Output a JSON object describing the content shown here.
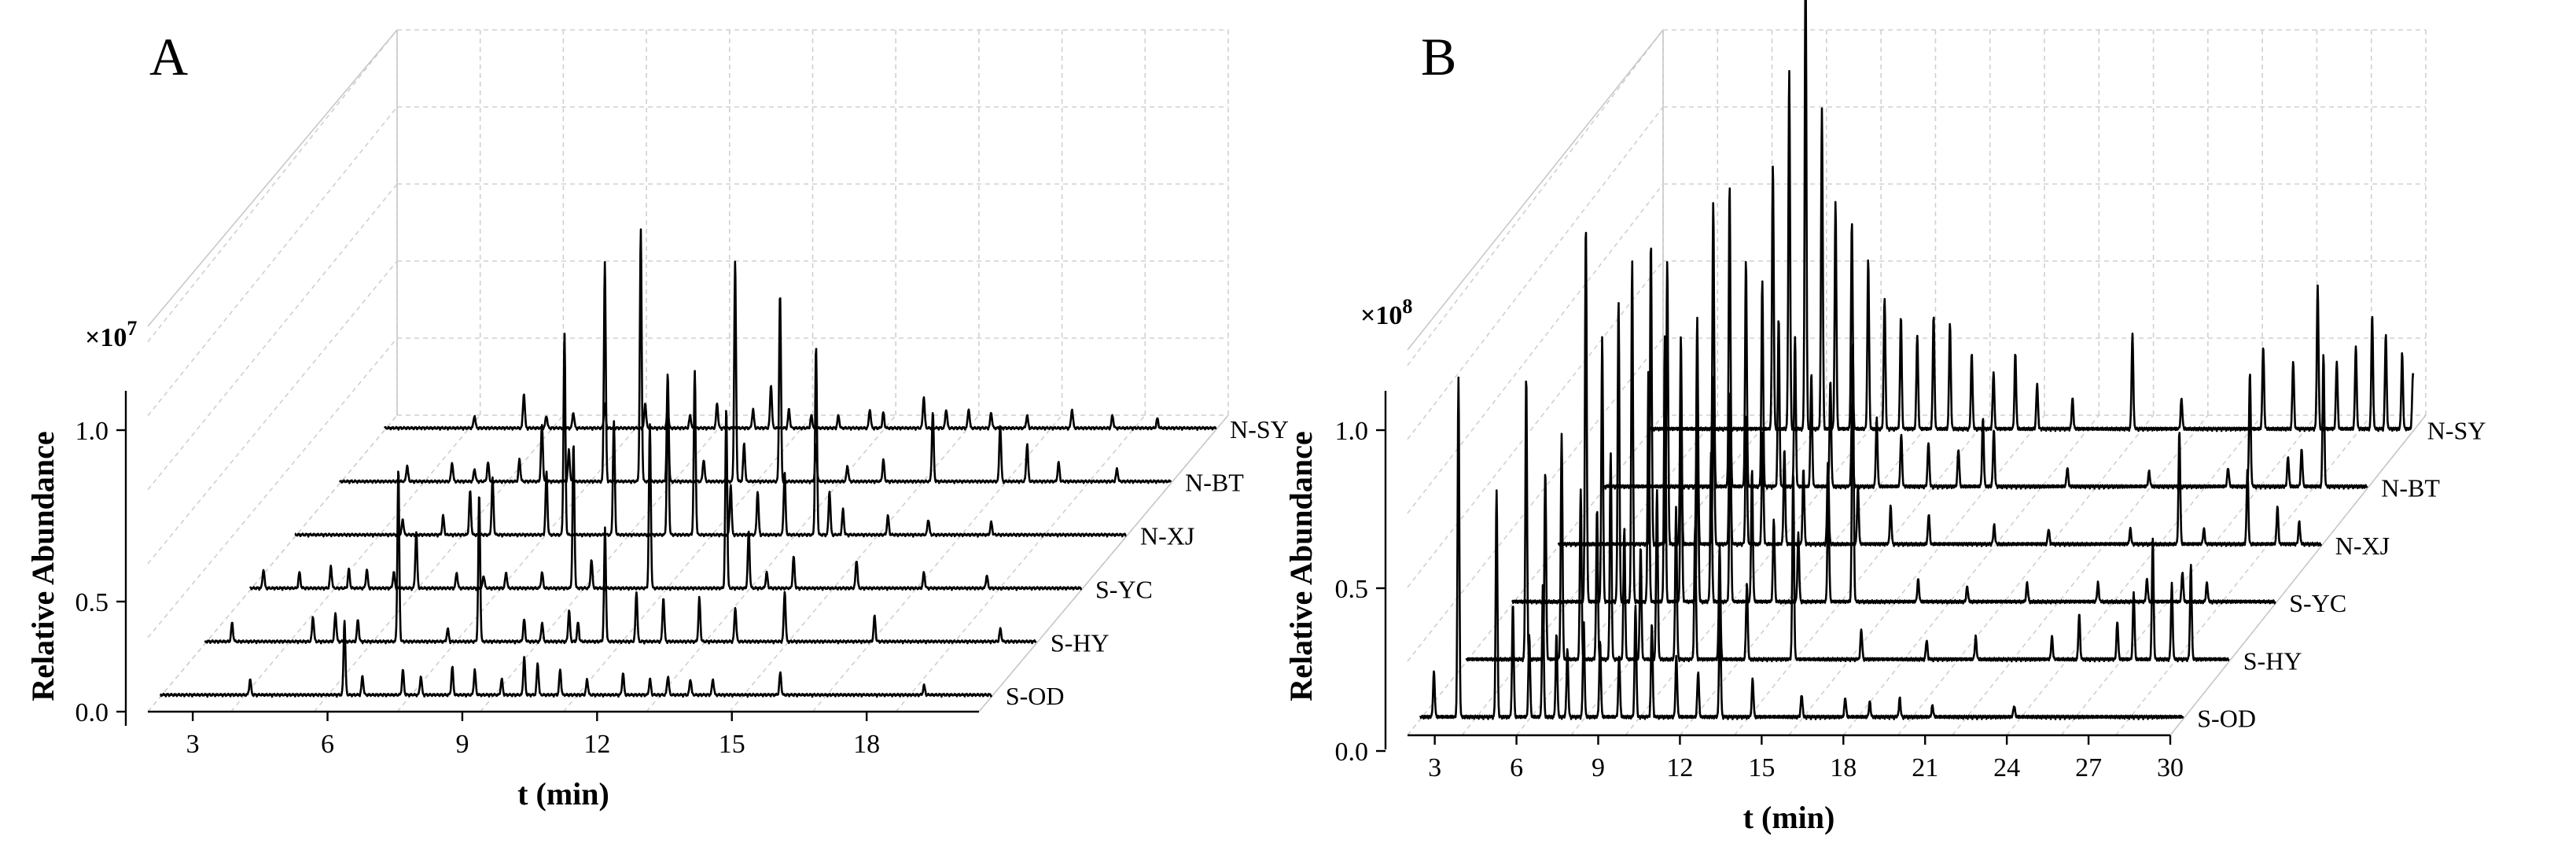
{
  "chart_data": [
    {
      "type": "line",
      "panel_label": "A",
      "xlabel": "t (min)",
      "ylabel": "Relative Abundance",
      "y_multiplier": "×10",
      "y_multiplier_exp": "7",
      "x_ticks": [
        "3",
        "6",
        "9",
        "12",
        "15",
        "18"
      ],
      "y_ticks": [
        "0.0",
        "0.5",
        "1.0"
      ],
      "xlim": [
        2,
        20.5
      ],
      "ylim": [
        0,
        1.0
      ],
      "series": [
        {
          "name": "S-OD",
          "peaks": [
            [
              4.0,
              0.05
            ],
            [
              6.1,
              0.24
            ],
            [
              6.5,
              0.06
            ],
            [
              7.4,
              0.08
            ],
            [
              7.8,
              0.06
            ],
            [
              8.5,
              0.09
            ],
            [
              9.0,
              0.08
            ],
            [
              9.6,
              0.05
            ],
            [
              10.1,
              0.12
            ],
            [
              10.4,
              0.1
            ],
            [
              10.9,
              0.08
            ],
            [
              11.5,
              0.05
            ],
            [
              12.3,
              0.07
            ],
            [
              12.9,
              0.05
            ],
            [
              13.3,
              0.06
            ],
            [
              13.8,
              0.05
            ],
            [
              14.3,
              0.05
            ],
            [
              15.8,
              0.07
            ],
            [
              19.0,
              0.03
            ]
          ]
        },
        {
          "name": "S-HY",
          "peaks": [
            [
              2.6,
              0.06
            ],
            [
              4.4,
              0.08
            ],
            [
              4.9,
              0.09
            ],
            [
              5.4,
              0.07
            ],
            [
              6.3,
              0.55
            ],
            [
              7.4,
              0.04
            ],
            [
              8.1,
              0.47
            ],
            [
              9.1,
              0.07
            ],
            [
              9.5,
              0.06
            ],
            [
              10.1,
              0.1
            ],
            [
              10.3,
              0.06
            ],
            [
              10.9,
              0.36
            ],
            [
              11.6,
              0.16
            ],
            [
              12.2,
              0.14
            ],
            [
              13.0,
              0.14
            ],
            [
              13.8,
              0.11
            ],
            [
              14.9,
              0.16
            ],
            [
              16.9,
              0.08
            ],
            [
              19.7,
              0.04
            ]
          ]
        },
        {
          "name": "S-YC",
          "peaks": [
            [
              2.3,
              0.06
            ],
            [
              3.1,
              0.05
            ],
            [
              3.8,
              0.07
            ],
            [
              4.2,
              0.06
            ],
            [
              4.6,
              0.06
            ],
            [
              5.2,
              0.05
            ],
            [
              5.7,
              0.18
            ],
            [
              6.6,
              0.05
            ],
            [
              7.2,
              0.04
            ],
            [
              7.7,
              0.05
            ],
            [
              8.5,
              0.05
            ],
            [
              9.2,
              0.46
            ],
            [
              9.6,
              0.09
            ],
            [
              10.9,
              0.52
            ],
            [
              12.6,
              0.57
            ],
            [
              13.1,
              0.18
            ],
            [
              13.5,
              0.05
            ],
            [
              14.1,
              0.1
            ],
            [
              15.5,
              0.09
            ],
            [
              17.0,
              0.05
            ],
            [
              18.4,
              0.04
            ]
          ]
        },
        {
          "name": "N-XJ",
          "peaks": [
            [
              4.4,
              0.05
            ],
            [
              5.3,
              0.06
            ],
            [
              5.9,
              0.14
            ],
            [
              6.4,
              0.18
            ],
            [
              7.6,
              0.2
            ],
            [
              8.0,
              0.64
            ],
            [
              9.1,
              0.36
            ],
            [
              10.3,
              0.47
            ],
            [
              10.9,
              0.52
            ],
            [
              11.7,
              0.16
            ],
            [
              12.3,
              0.14
            ],
            [
              12.9,
              0.2
            ],
            [
              13.6,
              0.6
            ],
            [
              13.9,
              0.14
            ],
            [
              14.2,
              0.08
            ],
            [
              15.2,
              0.06
            ],
            [
              16.1,
              0.05
            ],
            [
              17.5,
              0.04
            ]
          ]
        },
        {
          "name": "N-BT",
          "peaks": [
            [
              3.5,
              0.05
            ],
            [
              4.5,
              0.06
            ],
            [
              5.0,
              0.04
            ],
            [
              5.3,
              0.06
            ],
            [
              6.0,
              0.07
            ],
            [
              6.5,
              0.18
            ],
            [
              7.1,
              0.1
            ],
            [
              7.9,
              0.7
            ],
            [
              8.7,
              0.8
            ],
            [
              9.3,
              0.34
            ],
            [
              10.1,
              0.07
            ],
            [
              10.8,
              0.7
            ],
            [
              11.0,
              0.12
            ],
            [
              11.8,
              0.6
            ],
            [
              12.6,
              0.12
            ],
            [
              13.3,
              0.05
            ],
            [
              14.1,
              0.07
            ],
            [
              15.2,
              0.22
            ],
            [
              16.7,
              0.18
            ],
            [
              17.3,
              0.12
            ],
            [
              18.0,
              0.06
            ],
            [
              19.3,
              0.04
            ]
          ]
        },
        {
          "name": "N-SY",
          "peaks": [
            [
              4.0,
              0.04
            ],
            [
              5.1,
              0.11
            ],
            [
              5.6,
              0.04
            ],
            [
              6.2,
              0.05
            ],
            [
              6.9,
              0.08
            ],
            [
              7.8,
              0.08
            ],
            [
              8.3,
              0.06
            ],
            [
              8.8,
              0.04
            ],
            [
              9.4,
              0.08
            ],
            [
              10.2,
              0.06
            ],
            [
              10.6,
              0.14
            ],
            [
              11.0,
              0.06
            ],
            [
              11.5,
              0.04
            ],
            [
              12.1,
              0.04
            ],
            [
              12.8,
              0.06
            ],
            [
              13.1,
              0.05
            ],
            [
              14.0,
              0.1
            ],
            [
              14.5,
              0.06
            ],
            [
              15.0,
              0.06
            ],
            [
              15.5,
              0.05
            ],
            [
              16.3,
              0.04
            ],
            [
              17.3,
              0.06
            ],
            [
              18.2,
              0.04
            ],
            [
              19.2,
              0.03
            ]
          ]
        }
      ]
    },
    {
      "type": "line",
      "panel_label": "B",
      "xlabel": "t (min)",
      "ylabel": "Relative Abundance",
      "y_multiplier": "×10",
      "y_multiplier_exp": "8",
      "x_ticks": [
        "3",
        "6",
        "9",
        "12",
        "15",
        "18",
        "21",
        "24",
        "27",
        "30"
      ],
      "y_ticks": [
        "0.0",
        "0.5",
        "1.0"
      ],
      "xlim": [
        2,
        30
      ],
      "ylim": [
        0,
        1.0
      ],
      "series": [
        {
          "name": "S-OD",
          "peaks": [
            [
              2.5,
              0.12
            ],
            [
              3.4,
              0.9
            ],
            [
              4.8,
              0.6
            ],
            [
              5.4,
              0.3
            ],
            [
              6.0,
              0.22
            ],
            [
              6.5,
              0.35
            ],
            [
              7.0,
              0.22
            ],
            [
              7.4,
              0.18
            ],
            [
              8.0,
              0.25
            ],
            [
              8.6,
              0.2
            ],
            [
              9.3,
              0.16
            ],
            [
              9.9,
              0.3
            ],
            [
              10.5,
              0.25
            ],
            [
              11.4,
              0.16
            ],
            [
              12.2,
              0.12
            ],
            [
              13.0,
              0.3
            ],
            [
              14.2,
              0.1
            ],
            [
              16.0,
              0.06
            ],
            [
              17.6,
              0.05
            ],
            [
              18.5,
              0.04
            ],
            [
              19.6,
              0.05
            ],
            [
              20.8,
              0.03
            ],
            [
              23.8,
              0.03
            ]
          ]
        },
        {
          "name": "S-HY",
          "peaks": [
            [
              4.2,
              0.75
            ],
            [
              4.9,
              0.5
            ],
            [
              5.5,
              0.6
            ],
            [
              6.2,
              0.45
            ],
            [
              6.8,
              0.4
            ],
            [
              7.3,
              0.55
            ],
            [
              7.8,
              0.35
            ],
            [
              8.4,
              0.3
            ],
            [
              9.0,
              0.45
            ],
            [
              9.7,
              0.4
            ],
            [
              10.4,
              0.35
            ],
            [
              11.3,
              0.3
            ],
            [
              12.3,
              0.2
            ],
            [
              14.0,
              0.5
            ],
            [
              16.5,
              0.08
            ],
            [
              18.9,
              0.05
            ],
            [
              20.7,
              0.06
            ],
            [
              23.5,
              0.06
            ],
            [
              24.5,
              0.12
            ],
            [
              25.9,
              0.1
            ],
            [
              26.5,
              0.18
            ],
            [
              27.2,
              0.32
            ],
            [
              27.9,
              0.2
            ],
            [
              28.6,
              0.25
            ]
          ]
        },
        {
          "name": "S-YC",
          "peaks": [
            [
              4.7,
              1.0
            ],
            [
              5.3,
              0.7
            ],
            [
              5.9,
              0.8
            ],
            [
              6.4,
              0.9
            ],
            [
              7.0,
              0.62
            ],
            [
              7.6,
              0.7
            ],
            [
              8.2,
              0.55
            ],
            [
              8.8,
              0.48
            ],
            [
              9.3,
              0.4
            ],
            [
              10.0,
              0.5
            ],
            [
              10.8,
              0.35
            ],
            [
              11.6,
              0.22
            ],
            [
              12.5,
              0.18
            ],
            [
              13.6,
              0.3
            ],
            [
              14.5,
              0.7
            ],
            [
              16.9,
              0.06
            ],
            [
              18.7,
              0.04
            ],
            [
              20.9,
              0.05
            ],
            [
              23.5,
              0.05
            ],
            [
              25.3,
              0.06
            ],
            [
              26.6,
              0.08
            ],
            [
              27.5,
              0.05
            ]
          ]
        },
        {
          "name": "N-XJ",
          "peaks": [
            [
              5.4,
              0.8
            ],
            [
              6.0,
              0.75
            ],
            [
              6.5,
              0.55
            ],
            [
              7.1,
              0.6
            ],
            [
              7.7,
              0.45
            ],
            [
              8.3,
              0.4
            ],
            [
              8.9,
              0.35
            ],
            [
              9.5,
              0.3
            ],
            [
              10.3,
              0.25
            ],
            [
              11.0,
              0.2
            ],
            [
              11.9,
              0.22
            ],
            [
              13.0,
              0.15
            ],
            [
              14.2,
              0.1
            ],
            [
              15.6,
              0.08
            ],
            [
              18.0,
              0.05
            ],
            [
              20.0,
              0.04
            ],
            [
              23.0,
              0.04
            ],
            [
              24.8,
              0.3
            ],
            [
              25.7,
              0.04
            ],
            [
              27.3,
              0.2
            ],
            [
              28.4,
              0.1
            ],
            [
              29.2,
              0.06
            ]
          ]
        },
        {
          "name": "N-BT",
          "peaks": [
            [
              6.0,
              0.75
            ],
            [
              6.6,
              0.8
            ],
            [
              7.2,
              0.6
            ],
            [
              7.8,
              0.55
            ],
            [
              8.4,
              0.45
            ],
            [
              9.0,
              0.4
            ],
            [
              9.6,
              0.3
            ],
            [
              10.3,
              0.28
            ],
            [
              11.1,
              0.22
            ],
            [
              12.0,
              0.18
            ],
            [
              12.9,
              0.14
            ],
            [
              13.9,
              0.12
            ],
            [
              15.0,
              0.1
            ],
            [
              15.9,
              0.18
            ],
            [
              16.3,
              0.15
            ],
            [
              19.0,
              0.05
            ],
            [
              22.0,
              0.04
            ],
            [
              24.9,
              0.05
            ],
            [
              25.7,
              0.3
            ],
            [
              27.1,
              0.08
            ],
            [
              27.6,
              0.1
            ],
            [
              28.4,
              0.35
            ]
          ]
        },
        {
          "name": "N-SY",
          "peaks": [
            [
              6.5,
              0.7
            ],
            [
              7.1,
              0.95
            ],
            [
              7.7,
              1.25
            ],
            [
              8.3,
              0.85
            ],
            [
              8.8,
              0.6
            ],
            [
              9.4,
              0.55
            ],
            [
              10.0,
              0.45
            ],
            [
              10.6,
              0.35
            ],
            [
              11.2,
              0.3
            ],
            [
              11.8,
              0.25
            ],
            [
              12.4,
              0.3
            ],
            [
              13.0,
              0.28
            ],
            [
              13.8,
              0.2
            ],
            [
              14.6,
              0.15
            ],
            [
              15.4,
              0.2
            ],
            [
              16.2,
              0.12
            ],
            [
              17.5,
              0.08
            ],
            [
              19.7,
              0.25
            ],
            [
              21.5,
              0.08
            ],
            [
              24.5,
              0.22
            ],
            [
              25.6,
              0.18
            ],
            [
              26.5,
              0.38
            ],
            [
              27.2,
              0.18
            ],
            [
              27.9,
              0.22
            ],
            [
              28.5,
              0.3
            ],
            [
              29.0,
              0.25
            ],
            [
              29.6,
              0.2
            ],
            [
              30.0,
              0.15
            ]
          ]
        }
      ]
    }
  ]
}
